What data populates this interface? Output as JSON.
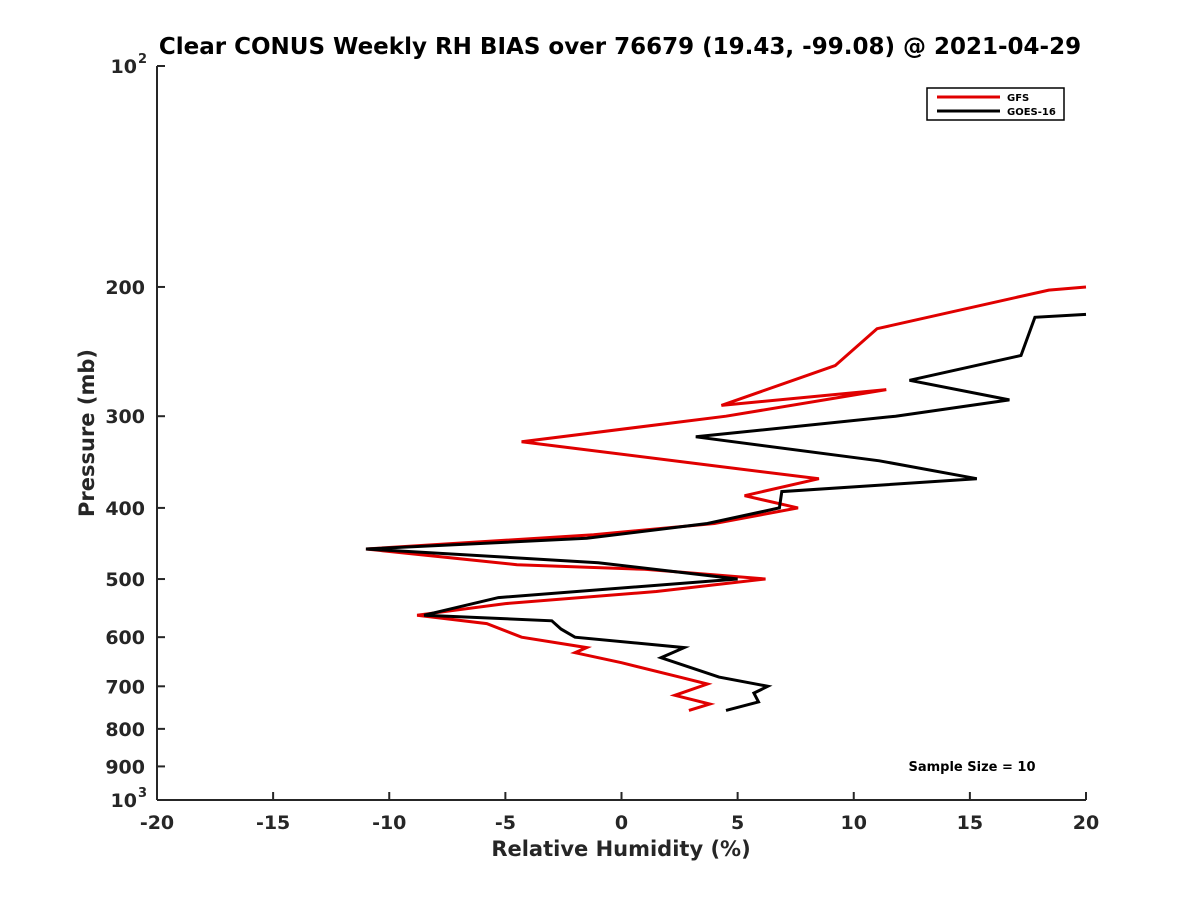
{
  "chart_data": {
    "type": "line",
    "title": "Clear CONUS Weekly RH BIAS over 76679 (19.43, -99.08) @ 2021-04-29",
    "xlabel": "Relative Humidity (%)",
    "ylabel": "Pressure (mb)",
    "xlim": [
      -20,
      20
    ],
    "ylim": [
      100,
      1000
    ],
    "y_scale": "log",
    "y_reversed": true,
    "grid": false,
    "legend_position": "top-right",
    "x_ticks": [
      "-20",
      "-15",
      "-10",
      "-5",
      "0",
      "5",
      "10",
      "15",
      "20"
    ],
    "y_ticks": [
      {
        "value": 100,
        "label": "10",
        "exp": "2"
      },
      {
        "value": 200,
        "label": "200"
      },
      {
        "value": 300,
        "label": "300"
      },
      {
        "value": 400,
        "label": "400"
      },
      {
        "value": 500,
        "label": "500"
      },
      {
        "value": 600,
        "label": "600"
      },
      {
        "value": 700,
        "label": "700"
      },
      {
        "value": 800,
        "label": "800"
      },
      {
        "value": 900,
        "label": "900"
      },
      {
        "value": 1000,
        "label": "10",
        "exp": "3"
      }
    ],
    "series": [
      {
        "name": "GFS",
        "color": "#e00000",
        "points": [
          [
            20.0,
            200
          ],
          [
            18.4,
            202
          ],
          [
            11.0,
            228
          ],
          [
            9.2,
            256
          ],
          [
            4.3,
            290
          ],
          [
            11.4,
            276
          ],
          [
            4.5,
            300
          ],
          [
            -4.3,
            325
          ],
          [
            3.8,
            350
          ],
          [
            8.5,
            365
          ],
          [
            5.3,
            385
          ],
          [
            7.6,
            400
          ],
          [
            4.0,
            420
          ],
          [
            -1.2,
            435
          ],
          [
            -11.0,
            455
          ],
          [
            -4.5,
            478
          ],
          [
            1.0,
            485
          ],
          [
            6.2,
            500
          ],
          [
            1.5,
            520
          ],
          [
            -5.0,
            540
          ],
          [
            -8.8,
            560
          ],
          [
            -5.8,
            575
          ],
          [
            -4.3,
            600
          ],
          [
            -1.5,
            620
          ],
          [
            -2.0,
            630
          ],
          [
            0.0,
            650
          ],
          [
            2.5,
            680
          ],
          [
            3.7,
            695
          ],
          [
            2.3,
            720
          ],
          [
            3.8,
            740
          ],
          [
            2.9,
            755
          ]
        ]
      },
      {
        "name": "GOES-16",
        "color": "#000000",
        "points": [
          [
            20.0,
            218
          ],
          [
            17.8,
            220
          ],
          [
            17.2,
            248
          ],
          [
            12.4,
            268
          ],
          [
            16.7,
            285
          ],
          [
            11.8,
            300
          ],
          [
            3.2,
            320
          ],
          [
            11.1,
            345
          ],
          [
            15.3,
            365
          ],
          [
            6.9,
            380
          ],
          [
            6.8,
            400
          ],
          [
            3.7,
            420
          ],
          [
            -1.5,
            440
          ],
          [
            -11.0,
            455
          ],
          [
            -1.0,
            475
          ],
          [
            5.0,
            500
          ],
          [
            -5.3,
            530
          ],
          [
            -8.5,
            560
          ],
          [
            -3.0,
            570
          ],
          [
            -2.6,
            585
          ],
          [
            -2.0,
            600
          ],
          [
            2.7,
            620
          ],
          [
            1.7,
            640
          ],
          [
            4.2,
            680
          ],
          [
            6.3,
            700
          ],
          [
            5.7,
            715
          ],
          [
            5.9,
            735
          ],
          [
            4.5,
            755
          ]
        ]
      }
    ],
    "annotation": "Sample Size = 10"
  }
}
